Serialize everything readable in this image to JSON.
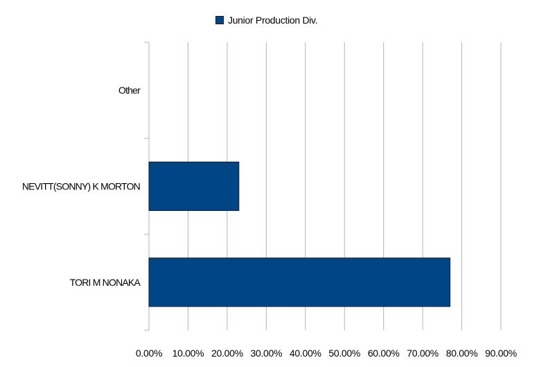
{
  "chart_data": {
    "type": "bar",
    "orientation": "horizontal",
    "categories": [
      "Other",
      "NEVITT(SONNY) K MORTON",
      "TORI M NONAKA"
    ],
    "series": [
      {
        "name": "Junior Production Div.",
        "values": [
          0,
          23.0,
          77.0
        ]
      }
    ],
    "xlim": [
      0,
      90
    ],
    "xticks": [
      "0.00%",
      "10.00%",
      "20.00%",
      "30.00%",
      "40.00%",
      "50.00%",
      "60.00%",
      "70.00%",
      "80.00%",
      "90.00%"
    ],
    "grid": true,
    "legend": "top",
    "colors": {
      "bar": "#004586",
      "bar_border": "#1a1a1a",
      "grid": "#b3b3b3"
    }
  }
}
